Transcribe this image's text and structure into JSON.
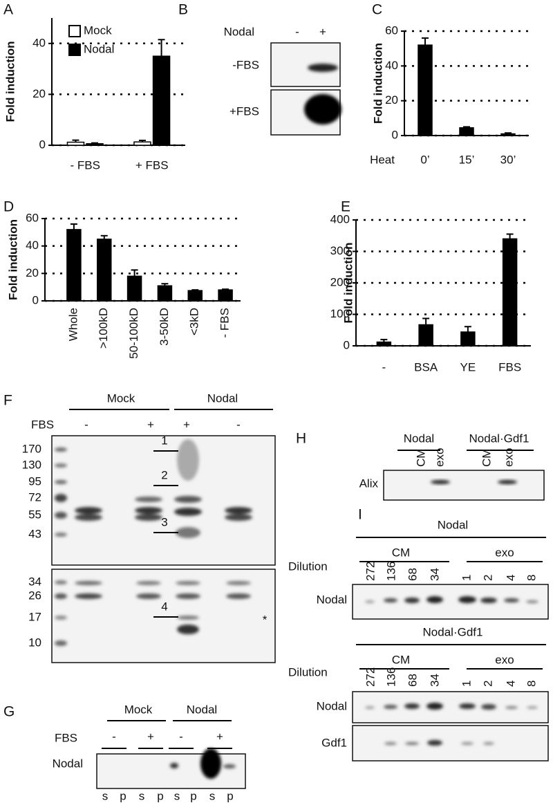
{
  "chart_data": [
    {
      "type": "bar",
      "label": "A",
      "ylabel": "Fold induction",
      "categories": [
        "- FBS",
        "+ FBS"
      ],
      "series": [
        {
          "name": "Mock",
          "color": "#ffffff",
          "values": [
            1.2,
            1.3
          ],
          "errors": [
            0.8,
            0.6
          ]
        },
        {
          "name": "Nodal",
          "color": "#000000",
          "values": [
            0.6,
            35
          ],
          "errors": [
            0.3,
            6.5
          ]
        }
      ],
      "ylim": [
        0,
        50
      ],
      "yticks": [
        0,
        20,
        40
      ],
      "grid": true,
      "legend": "upper left"
    },
    {
      "type": "bar",
      "label": "C",
      "ylabel": "Fold induction",
      "xlabel": "Heat",
      "categories": [
        "0’",
        "15’",
        "30’"
      ],
      "values": [
        52,
        4.5,
        1
      ],
      "errors": [
        4,
        0.5,
        0.5
      ],
      "color": "#000000",
      "ylim": [
        0,
        60
      ],
      "yticks": [
        0,
        20,
        40,
        60
      ],
      "grid": true
    },
    {
      "type": "bar",
      "label": "D",
      "ylabel": "Fold induction",
      "categories": [
        "Whole",
        ">100kD",
        "50-100kD",
        "3-50kD",
        "<3kD",
        "- FBS"
      ],
      "values": [
        52,
        45,
        18,
        11,
        7.5,
        8
      ],
      "errors": [
        4,
        2.5,
        4.5,
        1.5,
        0.5,
        0.5
      ],
      "color": "#000000",
      "ylim": [
        0,
        60
      ],
      "yticks": [
        0,
        20,
        40,
        60
      ],
      "grid": true
    },
    {
      "type": "bar",
      "label": "E",
      "ylabel": "Fold induction",
      "categories": [
        "-",
        "BSA",
        "YE",
        "FBS"
      ],
      "values": [
        12,
        67,
        44,
        340
      ],
      "errors": [
        8,
        20,
        17,
        15
      ],
      "color": "#000000",
      "ylim": [
        0,
        400
      ],
      "yticks": [
        0,
        100,
        200,
        300,
        400
      ],
      "grid": true
    }
  ],
  "blots": {
    "B": {
      "label": "B",
      "header": "Nodal",
      "lanes": [
        "-",
        "+"
      ],
      "rows": [
        "-FBS",
        "+FBS"
      ]
    },
    "F": {
      "label": "F",
      "groups": [
        "Mock",
        "Nodal"
      ],
      "row_label": "FBS",
      "lanes": [
        "-",
        "+",
        "+",
        "-"
      ],
      "markers": [
        "170",
        "130",
        "95",
        "72",
        "55",
        "43",
        "34",
        "26",
        "17",
        "10"
      ],
      "arrows": [
        "1",
        "2",
        "3",
        "4"
      ],
      "note": "*"
    },
    "G": {
      "label": "G",
      "groups": [
        "Mock",
        "Nodal"
      ],
      "row_label": "FBS",
      "lanes": [
        "-",
        "+",
        "-",
        "+"
      ],
      "blot_label": "Nodal",
      "fractions": [
        "s",
        "p",
        "s",
        "p",
        "s",
        "p",
        "s",
        "p"
      ]
    },
    "H": {
      "label": "H",
      "groups": [
        "Nodal",
        "Nodal·Gdf1"
      ],
      "lanes": [
        "CM",
        "exo",
        "CM",
        "exo"
      ],
      "blot_label": "Alix"
    },
    "I": {
      "label": "I",
      "panels": [
        {
          "title": "Nodal",
          "groups": [
            "CM",
            "exo"
          ],
          "dilution_label": "Dilution",
          "dilutions": [
            "272",
            "136",
            "68",
            "34",
            "1",
            "2",
            "4",
            "8"
          ],
          "blots": [
            "Nodal"
          ]
        },
        {
          "title": "Nodal·Gdf1",
          "groups": [
            "CM",
            "exo"
          ],
          "dilution_label": "Dilution",
          "dilutions": [
            "272",
            "136",
            "68",
            "34",
            "1",
            "2",
            "4",
            "8"
          ],
          "blots": [
            "Nodal",
            "Gdf1"
          ]
        }
      ]
    }
  }
}
